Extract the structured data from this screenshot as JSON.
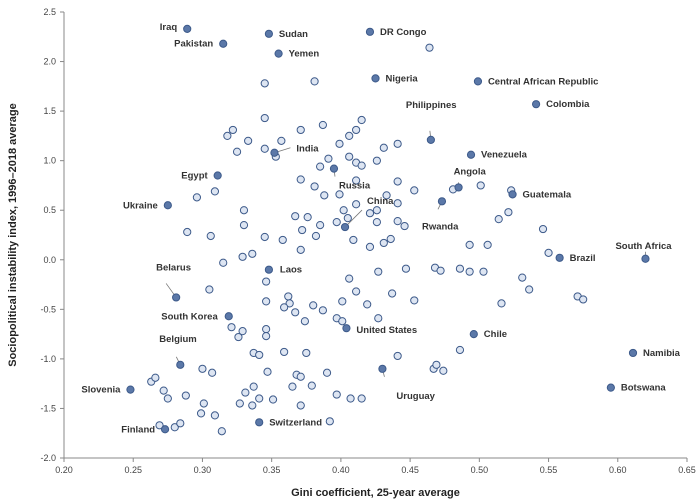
{
  "chart_data": {
    "type": "scatter",
    "xlabel": "Gini coefficient, 25-year average",
    "ylabel": "Sociopolitical instability index, 1996–2018 average",
    "xlim": [
      0.2,
      0.65
    ],
    "ylim": [
      -2.0,
      2.5
    ],
    "xticks": [
      "0.20",
      "0.25",
      "0.30",
      "0.35",
      "0.40",
      "0.45",
      "0.50",
      "0.55",
      "0.60",
      "0.65"
    ],
    "yticks": [
      "-2.0",
      "-1.5",
      "-1.0",
      "-0.5",
      "0.0",
      "0.5",
      "1.0",
      "1.5",
      "2.0",
      "2.5"
    ],
    "grid": false,
    "colors": {
      "point_fill": "#5b78a8",
      "open_point_fill": "#dde5f2",
      "point_stroke": "#3d5a8a",
      "leader": "#777777"
    },
    "labeled_points": [
      {
        "name": "Iraq",
        "x": 0.289,
        "y": 2.33
      },
      {
        "name": "Sudan",
        "x": 0.348,
        "y": 2.28
      },
      {
        "name": "DR Congo",
        "x": 0.421,
        "y": 2.3
      },
      {
        "name": "Pakistan",
        "x": 0.315,
        "y": 2.18
      },
      {
        "name": "Yemen",
        "x": 0.355,
        "y": 2.08
      },
      {
        "name": "Nigeria",
        "x": 0.425,
        "y": 1.83
      },
      {
        "name": "Central African Republic",
        "x": 0.499,
        "y": 1.8
      },
      {
        "name": "Colombia",
        "x": 0.541,
        "y": 1.57
      },
      {
        "name": "India",
        "x": 0.352,
        "y": 1.08
      },
      {
        "name": "Philippines",
        "x": 0.465,
        "y": 1.21
      },
      {
        "name": "Venezuela",
        "x": 0.494,
        "y": 1.06
      },
      {
        "name": "Egypt",
        "x": 0.311,
        "y": 0.85
      },
      {
        "name": "Russia",
        "x": 0.395,
        "y": 0.92
      },
      {
        "name": "Angola",
        "x": 0.485,
        "y": 0.73
      },
      {
        "name": "Guatemala",
        "x": 0.524,
        "y": 0.66
      },
      {
        "name": "Ukraine",
        "x": 0.275,
        "y": 0.55
      },
      {
        "name": "Rwanda",
        "x": 0.473,
        "y": 0.59
      },
      {
        "name": "China",
        "x": 0.403,
        "y": 0.33
      },
      {
        "name": "South Africa",
        "x": 0.62,
        "y": 0.01
      },
      {
        "name": "Brazil",
        "x": 0.558,
        "y": 0.02
      },
      {
        "name": "Laos",
        "x": 0.348,
        "y": -0.1
      },
      {
        "name": "Belarus",
        "x": 0.281,
        "y": -0.38
      },
      {
        "name": "South Korea",
        "x": 0.319,
        "y": -0.57
      },
      {
        "name": "United States",
        "x": 0.404,
        "y": -0.69
      },
      {
        "name": "Chile",
        "x": 0.496,
        "y": -0.75
      },
      {
        "name": "Belgium",
        "x": 0.284,
        "y": -1.06
      },
      {
        "name": "Namibia",
        "x": 0.611,
        "y": -0.94
      },
      {
        "name": "Uruguay",
        "x": 0.43,
        "y": -1.1
      },
      {
        "name": "Slovenia",
        "x": 0.248,
        "y": -1.31
      },
      {
        "name": "Botswana",
        "x": 0.595,
        "y": -1.29
      },
      {
        "name": "Switzerland",
        "x": 0.341,
        "y": -1.64
      },
      {
        "name": "Finland",
        "x": 0.273,
        "y": -1.71
      }
    ],
    "unlabeled_points": [
      [
        0.464,
        2.14
      ],
      [
        0.345,
        1.78
      ],
      [
        0.381,
        1.8
      ],
      [
        0.318,
        1.25
      ],
      [
        0.322,
        1.31
      ],
      [
        0.345,
        1.43
      ],
      [
        0.333,
        1.2
      ],
      [
        0.345,
        1.12
      ],
      [
        0.357,
        1.2
      ],
      [
        0.353,
        1.04
      ],
      [
        0.371,
        1.31
      ],
      [
        0.387,
        1.36
      ],
      [
        0.325,
        1.09
      ],
      [
        0.399,
        1.17
      ],
      [
        0.406,
        1.25
      ],
      [
        0.411,
        1.31
      ],
      [
        0.415,
        1.41
      ],
      [
        0.406,
        1.04
      ],
      [
        0.411,
        0.98
      ],
      [
        0.415,
        0.95
      ],
      [
        0.426,
        1.0
      ],
      [
        0.431,
        1.13
      ],
      [
        0.441,
        1.17
      ],
      [
        0.391,
        1.02
      ],
      [
        0.385,
        0.94
      ],
      [
        0.371,
        0.81
      ],
      [
        0.381,
        0.74
      ],
      [
        0.388,
        0.65
      ],
      [
        0.399,
        0.66
      ],
      [
        0.411,
        0.8
      ],
      [
        0.441,
        0.79
      ],
      [
        0.453,
        0.7
      ],
      [
        0.481,
        0.71
      ],
      [
        0.501,
        0.75
      ],
      [
        0.523,
        0.7
      ],
      [
        0.433,
        0.65
      ],
      [
        0.441,
        0.57
      ],
      [
        0.426,
        0.5
      ],
      [
        0.421,
        0.47
      ],
      [
        0.411,
        0.56
      ],
      [
        0.402,
        0.5
      ],
      [
        0.309,
        0.69
      ],
      [
        0.296,
        0.63
      ],
      [
        0.33,
        0.5
      ],
      [
        0.367,
        0.44
      ],
      [
        0.376,
        0.43
      ],
      [
        0.372,
        0.3
      ],
      [
        0.385,
        0.35
      ],
      [
        0.397,
        0.38
      ],
      [
        0.405,
        0.42
      ],
      [
        0.426,
        0.38
      ],
      [
        0.441,
        0.39
      ],
      [
        0.446,
        0.34
      ],
      [
        0.436,
        0.21
      ],
      [
        0.431,
        0.17
      ],
      [
        0.421,
        0.13
      ],
      [
        0.409,
        0.2
      ],
      [
        0.382,
        0.24
      ],
      [
        0.371,
        0.1
      ],
      [
        0.358,
        0.2
      ],
      [
        0.345,
        0.23
      ],
      [
        0.33,
        0.35
      ],
      [
        0.306,
        0.24
      ],
      [
        0.289,
        0.28
      ],
      [
        0.336,
        0.06
      ],
      [
        0.329,
        0.03
      ],
      [
        0.315,
        -0.03
      ],
      [
        0.305,
        -0.3
      ],
      [
        0.346,
        -0.22
      ],
      [
        0.346,
        -0.42
      ],
      [
        0.362,
        -0.37
      ],
      [
        0.363,
        -0.44
      ],
      [
        0.359,
        -0.48
      ],
      [
        0.367,
        -0.53
      ],
      [
        0.38,
        -0.46
      ],
      [
        0.387,
        -0.51
      ],
      [
        0.397,
        -0.59
      ],
      [
        0.401,
        -0.62
      ],
      [
        0.401,
        -0.42
      ],
      [
        0.419,
        -0.45
      ],
      [
        0.411,
        -0.32
      ],
      [
        0.406,
        -0.19
      ],
      [
        0.427,
        -0.12
      ],
      [
        0.447,
        -0.09
      ],
      [
        0.437,
        -0.34
      ],
      [
        0.427,
        -0.59
      ],
      [
        0.453,
        -0.41
      ],
      [
        0.468,
        -0.08
      ],
      [
        0.472,
        -0.11
      ],
      [
        0.486,
        -0.09
      ],
      [
        0.493,
        -0.12
      ],
      [
        0.503,
        -0.12
      ],
      [
        0.493,
        0.15
      ],
      [
        0.506,
        0.15
      ],
      [
        0.514,
        0.41
      ],
      [
        0.521,
        0.48
      ],
      [
        0.546,
        0.31
      ],
      [
        0.55,
        0.07
      ],
      [
        0.531,
        -0.18
      ],
      [
        0.536,
        -0.3
      ],
      [
        0.516,
        -0.44
      ],
      [
        0.571,
        -0.37
      ],
      [
        0.575,
        -0.4
      ],
      [
        0.321,
        -0.68
      ],
      [
        0.329,
        -0.72
      ],
      [
        0.326,
        -0.78
      ],
      [
        0.346,
        -0.7
      ],
      [
        0.346,
        -0.77
      ],
      [
        0.337,
        -0.94
      ],
      [
        0.341,
        -0.96
      ],
      [
        0.359,
        -0.93
      ],
      [
        0.374,
        -0.62
      ],
      [
        0.375,
        -0.94
      ],
      [
        0.368,
        -1.16
      ],
      [
        0.371,
        -1.18
      ],
      [
        0.379,
        -1.27
      ],
      [
        0.365,
        -1.28
      ],
      [
        0.347,
        -1.13
      ],
      [
        0.337,
        -1.28
      ],
      [
        0.331,
        -1.34
      ],
      [
        0.327,
        -1.45
      ],
      [
        0.341,
        -1.4
      ],
      [
        0.336,
        -1.47
      ],
      [
        0.351,
        -1.41
      ],
      [
        0.371,
        -1.47
      ],
      [
        0.39,
        -1.14
      ],
      [
        0.397,
        -1.36
      ],
      [
        0.407,
        -1.4
      ],
      [
        0.415,
        -1.4
      ],
      [
        0.441,
        -0.97
      ],
      [
        0.467,
        -1.1
      ],
      [
        0.469,
        -1.06
      ],
      [
        0.474,
        -1.12
      ],
      [
        0.486,
        -0.91
      ],
      [
        0.3,
        -1.1
      ],
      [
        0.307,
        -1.14
      ],
      [
        0.301,
        -1.45
      ],
      [
        0.309,
        -1.57
      ],
      [
        0.299,
        -1.55
      ],
      [
        0.288,
        -1.37
      ],
      [
        0.275,
        -1.4
      ],
      [
        0.263,
        -1.23
      ],
      [
        0.266,
        -1.19
      ],
      [
        0.272,
        -1.32
      ],
      [
        0.269,
        -1.67
      ],
      [
        0.28,
        -1.69
      ],
      [
        0.284,
        -1.65
      ],
      [
        0.314,
        -1.73
      ],
      [
        0.392,
        -1.63
      ]
    ]
  }
}
